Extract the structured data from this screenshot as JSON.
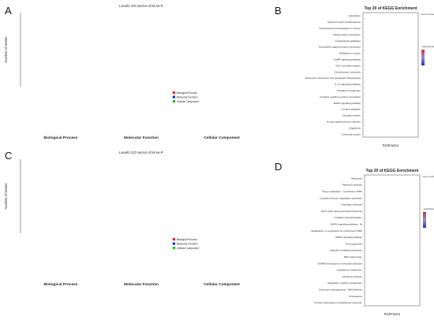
{
  "panels": {
    "A": {
      "letter": "A"
    },
    "B": {
      "letter": "B"
    },
    "C": {
      "letter": "C"
    },
    "D": {
      "letter": "D"
    }
  },
  "colors": {
    "biological": "#e0262b",
    "molecular": "#1f2fd6",
    "cellular": "#1fbf2a",
    "bubble_high": "#e8262a",
    "bubble_low": "#2233cc",
    "bubble_mid": "#9a8ad8"
  },
  "chart_data": [
    {
      "type": "bar",
      "panel": "A",
      "title": "Level2 GO terms of M-vs-P",
      "ylabel": "Number of Genes",
      "xlabel": "",
      "ylim": [
        0,
        500
      ],
      "yticks": [],
      "legend": [
        "Biological Process",
        "Molecular Function",
        "Cellular Component"
      ],
      "legend_position": "right",
      "group_labels": [
        "Biological Process",
        "Molecular Function",
        "Cellular Component"
      ],
      "groups": [
        {
          "name": "Biological Process",
          "values": []
        },
        {
          "name": "Molecular Function",
          "values": []
        },
        {
          "name": "Cellular Component",
          "values": []
        }
      ]
    },
    {
      "type": "bar",
      "panel": "C",
      "title": "Level2 GO terms of M-vs-P",
      "ylabel": "Number of Genes",
      "xlabel": "",
      "ylim": [
        0,
        700
      ],
      "yticks": [],
      "legend": [
        "Biological Process",
        "Molecular Function",
        "Cellular Component"
      ],
      "legend_position": "right",
      "group_labels": [
        "Biological Process",
        "Molecular Function",
        "Cellular Component"
      ],
      "groups": [
        {
          "name": "Biological Process",
          "values": []
        },
        {
          "name": "Molecular Function",
          "values": []
        },
        {
          "name": "Cellular Component",
          "values": []
        }
      ]
    },
    {
      "type": "scatter",
      "panel": "B",
      "title": "Top 20 of KEGG Enrichment",
      "xlabel": "RichFactor",
      "ylabel": "",
      "xlim": [
        0.05,
        0.55
      ],
      "xticks": [],
      "legend_size_title": "Gene number",
      "legend_color_title": "-log10(Qvalue)",
      "legend_position": "right",
      "categories": [
        "Alcoholism",
        "Systemic lupus erythematosus",
        "Transcriptional misregulation in cancer",
        "ECM-receptor interaction",
        "Amphetamine addiction",
        "Neuroactive ligand-receptor interaction",
        "Pathways in cancer",
        "CAMP signaling pathway",
        "Th17 cell differentiation",
        "Cell adhesion molecules",
        "Neomycin, kanamycin and gentamicin biosynthesis",
        "IL-17 signaling pathway",
        "Circadian entrainment",
        "Cytokine-cytokine receptor interaction",
        "MAPK signaling pathway",
        "Cocaine addiction",
        "Circadian rhythm",
        "Human papillomavirus infection",
        "Shigellosis",
        "Colorectal cancer"
      ],
      "x": [],
      "sizes": [],
      "colors": []
    },
    {
      "type": "scatter",
      "panel": "D",
      "title": "Top 20 of KEGG Enrichment",
      "xlabel": "RichFactor",
      "ylabel": "",
      "xlim": [
        0.05,
        0.22
      ],
      "xticks": [],
      "legend_size_title": "Gene number",
      "legend_color_title": "-log10(Qvalue)",
      "legend_position": "right",
      "categories": [
        "Ribosome",
        "Parkinson disease",
        "Drug metabolism - cytochrome P450",
        "Complement and coagulation cascades",
        "Huntington disease",
        "Fluid shear stress and atherosclerosis",
        "Oxidative phosphorylation",
        "MAPK signaling pathway - fly",
        "Metabolism of xenobiotics by cytochrome P450",
        "PPAR signaling pathway",
        "Thermogenesis",
        "Ubiquitin mediated proteolysis",
        "RNA polymerase",
        "SNARE interactions in vesicular transport",
        "Glutathione metabolism",
        "Alzheimer disease",
        "Regulation of actin cytoskeleton",
        "Chemical carcinogenesis - DNA adducts",
        "Proteasome",
        "Protein processing in endoplasmic reticulum"
      ],
      "x": [],
      "sizes": [],
      "colors": []
    }
  ]
}
